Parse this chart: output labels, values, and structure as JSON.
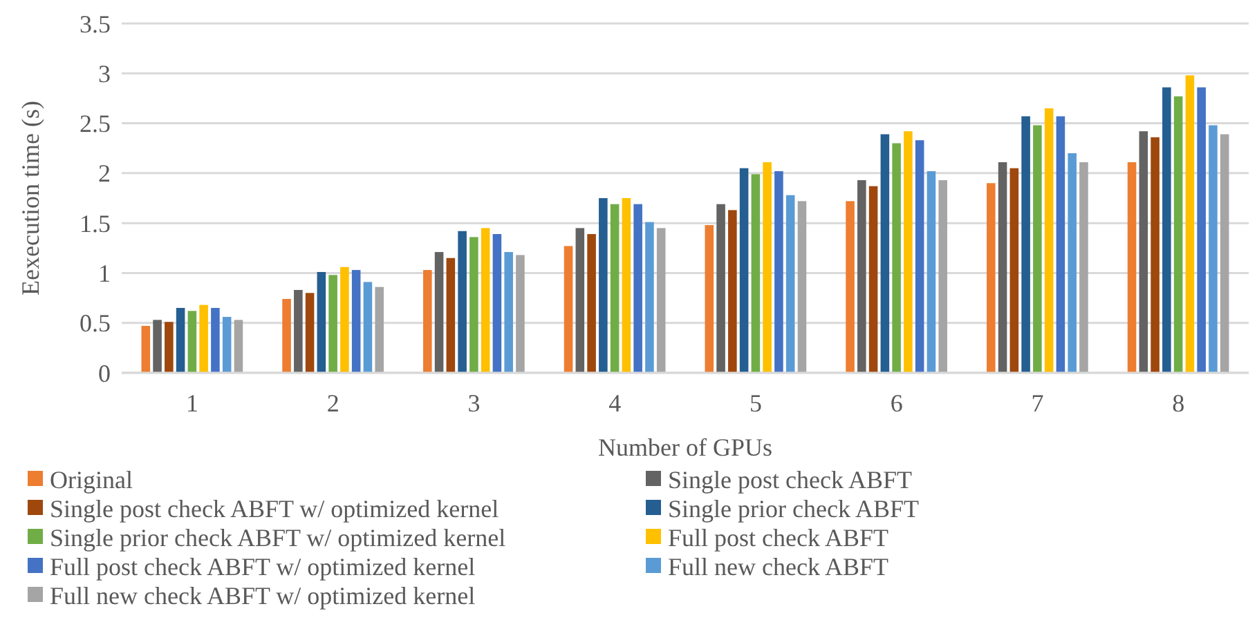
{
  "chart_data": {
    "type": "bar",
    "xlabel": "Number of GPUs",
    "ylabel": "Eexecution time (s)",
    "categories": [
      "1",
      "2",
      "3",
      "4",
      "5",
      "6",
      "7",
      "8"
    ],
    "ylim": [
      0,
      3.5
    ],
    "yticks": [
      0,
      0.5,
      1,
      1.5,
      2,
      2.5,
      3,
      3.5
    ],
    "grid": "y",
    "legend": "bottom",
    "series": [
      {
        "name": "Original",
        "color": "#ed7d31",
        "values": [
          0.47,
          0.74,
          1.03,
          1.27,
          1.48,
          1.72,
          1.9,
          2.11
        ]
      },
      {
        "name": "Single post check ABFT",
        "color": "#636363",
        "values": [
          0.53,
          0.83,
          1.21,
          1.45,
          1.69,
          1.93,
          2.11,
          2.42
        ]
      },
      {
        "name": "Single post check ABFT w/ optimized kernel",
        "color": "#9e480e",
        "values": [
          0.51,
          0.8,
          1.15,
          1.39,
          1.63,
          1.87,
          2.05,
          2.36
        ]
      },
      {
        "name": "Single prior check ABFT",
        "color": "#255e91",
        "values": [
          0.65,
          1.01,
          1.42,
          1.75,
          2.05,
          2.39,
          2.57,
          2.86
        ]
      },
      {
        "name": "Single prior check ABFT w/ optimized kernel",
        "color": "#70ad47",
        "values": [
          0.62,
          0.98,
          1.36,
          1.69,
          1.99,
          2.3,
          2.48,
          2.77
        ]
      },
      {
        "name": "Full post check ABFT",
        "color": "#ffc000",
        "values": [
          0.68,
          1.06,
          1.45,
          1.75,
          2.11,
          2.42,
          2.65,
          2.98
        ]
      },
      {
        "name": "Full post check ABFT w/ optimized kernel",
        "color": "#4472c4",
        "values": [
          0.65,
          1.03,
          1.39,
          1.69,
          2.02,
          2.33,
          2.57,
          2.86
        ]
      },
      {
        "name": "Full new check ABFT",
        "color": "#5b9bd5",
        "values": [
          0.56,
          0.91,
          1.21,
          1.51,
          1.78,
          2.02,
          2.2,
          2.48
        ]
      },
      {
        "name": "Full new check ABFT w/ optimized kernel",
        "color": "#a5a5a5",
        "values": [
          0.53,
          0.86,
          1.18,
          1.45,
          1.72,
          1.93,
          2.11,
          2.39
        ]
      }
    ]
  }
}
